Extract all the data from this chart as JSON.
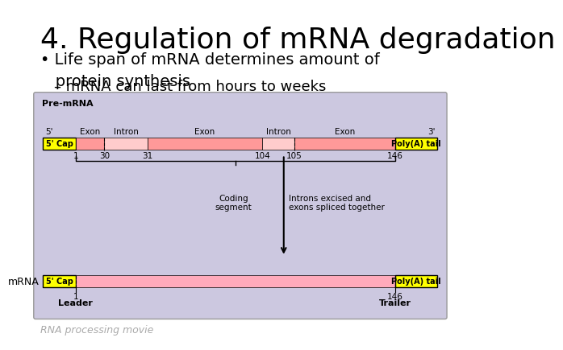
{
  "title": "4. Regulation of mRNA degradation",
  "bullet1": "• Life span of mRNA determines amount of\n   protein synthesis",
  "sub_bullet1": "– mRNA can last from hours to weeks",
  "footer": "RNA processing movie",
  "bg_color": "#ffffff",
  "diagram_bg": "#ccc8e0",
  "diagram_border": "#999999",
  "yellow": "#ffff00",
  "pink_exon": "#ff9999",
  "pink_intron": "#ffcccc",
  "pink_mrna": "#ffaabb",
  "text_color": "#000000",
  "footer_color": "#aaaaaa",
  "title_fontsize": 26,
  "body_fontsize": 14,
  "sub_fontsize": 13
}
